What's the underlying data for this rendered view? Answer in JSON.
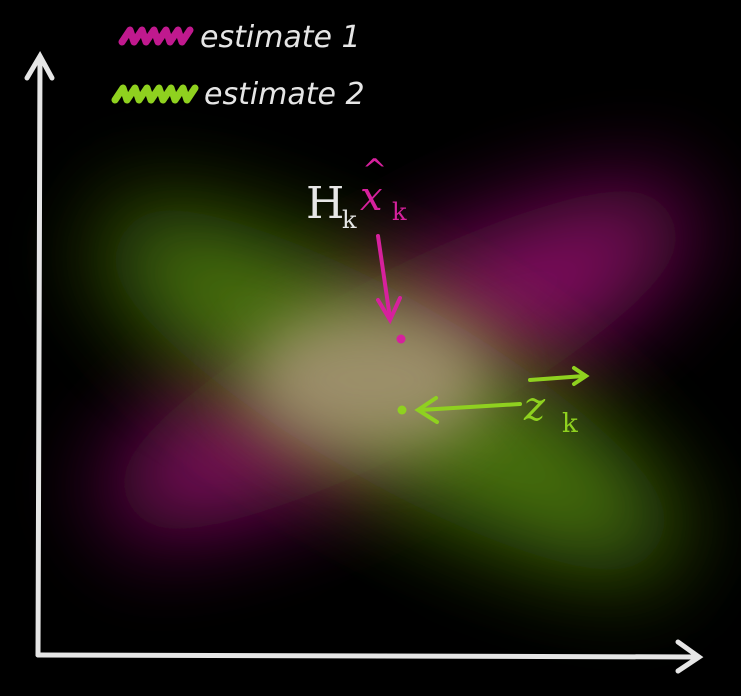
{
  "legend": {
    "items": [
      {
        "label": "estimate 1",
        "color": "#c0198e"
      },
      {
        "label": "estimate 2",
        "color": "#8fd11f"
      }
    ]
  },
  "annotations": {
    "predicted": {
      "base": "H",
      "sub_h": "k",
      "var": "x",
      "hat": "^",
      "sub_x": "k",
      "color": "#d6219d"
    },
    "measurement": {
      "var": "z",
      "sub": "k",
      "color": "#8fd11f"
    }
  },
  "colors": {
    "background": "#000000",
    "axes": "#e6e6e6",
    "estimate1": "#8a0f66",
    "estimate2": "#4e7a10",
    "overlap": "#b59a86"
  },
  "icons": {
    "legend_swatch_1": "scribble-swatch-icon",
    "legend_swatch_2": "scribble-swatch-icon",
    "y_arrow": "arrowhead-up-icon",
    "x_arrow": "arrowhead-right-icon"
  }
}
